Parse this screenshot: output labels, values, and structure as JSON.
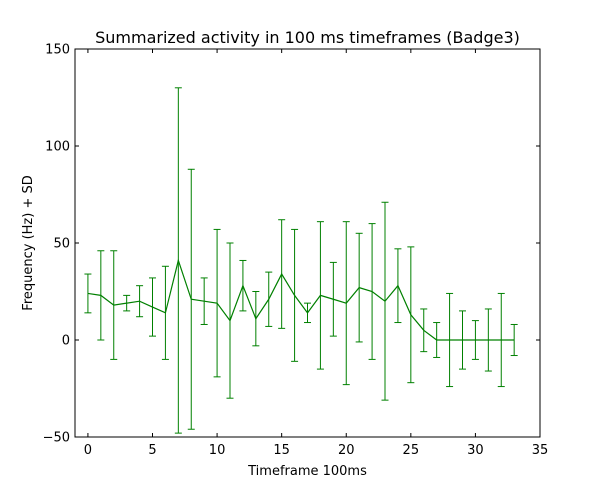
{
  "chart_data": {
    "type": "line",
    "title": "Summarized activity in 100 ms timeframes (Badge3)",
    "xlabel": "Timeframe 100ms",
    "ylabel": "Frequency (Hz) + SD",
    "xlim": [
      -1,
      35
    ],
    "ylim": [
      -50,
      150
    ],
    "xticks": [
      0,
      5,
      10,
      15,
      20,
      25,
      30,
      35
    ],
    "yticks": [
      -50,
      0,
      50,
      100,
      150
    ],
    "xtick_labels": [
      "0",
      "5",
      "10",
      "15",
      "20",
      "25",
      "30",
      "35"
    ],
    "ytick_labels": [
      "−50",
      "0",
      "50",
      "100",
      "150"
    ],
    "grid": false,
    "series": [
      {
        "name": "Badge3",
        "color": "#008000",
        "x": [
          0,
          1,
          2,
          3,
          4,
          5,
          6,
          7,
          8,
          9,
          10,
          11,
          12,
          13,
          14,
          15,
          16,
          17,
          18,
          19,
          20,
          21,
          22,
          23,
          24,
          25,
          26,
          27,
          28,
          29,
          30,
          31,
          32,
          33
        ],
        "y": [
          24,
          23,
          18,
          19,
          20,
          17,
          14,
          41,
          21,
          20,
          19,
          10,
          28,
          11,
          21,
          34,
          23,
          14,
          23,
          21,
          19,
          27,
          25,
          20,
          28,
          13,
          5,
          0,
          0,
          0,
          0,
          0,
          0,
          0
        ],
        "error": [
          10,
          23,
          28,
          4,
          8,
          15,
          24,
          89,
          67,
          12,
          38,
          40,
          13,
          14,
          14,
          28,
          34,
          5,
          38,
          19,
          42,
          28,
          35,
          51,
          19,
          35,
          11,
          9,
          24,
          15,
          10,
          16,
          24,
          8
        ]
      }
    ]
  }
}
